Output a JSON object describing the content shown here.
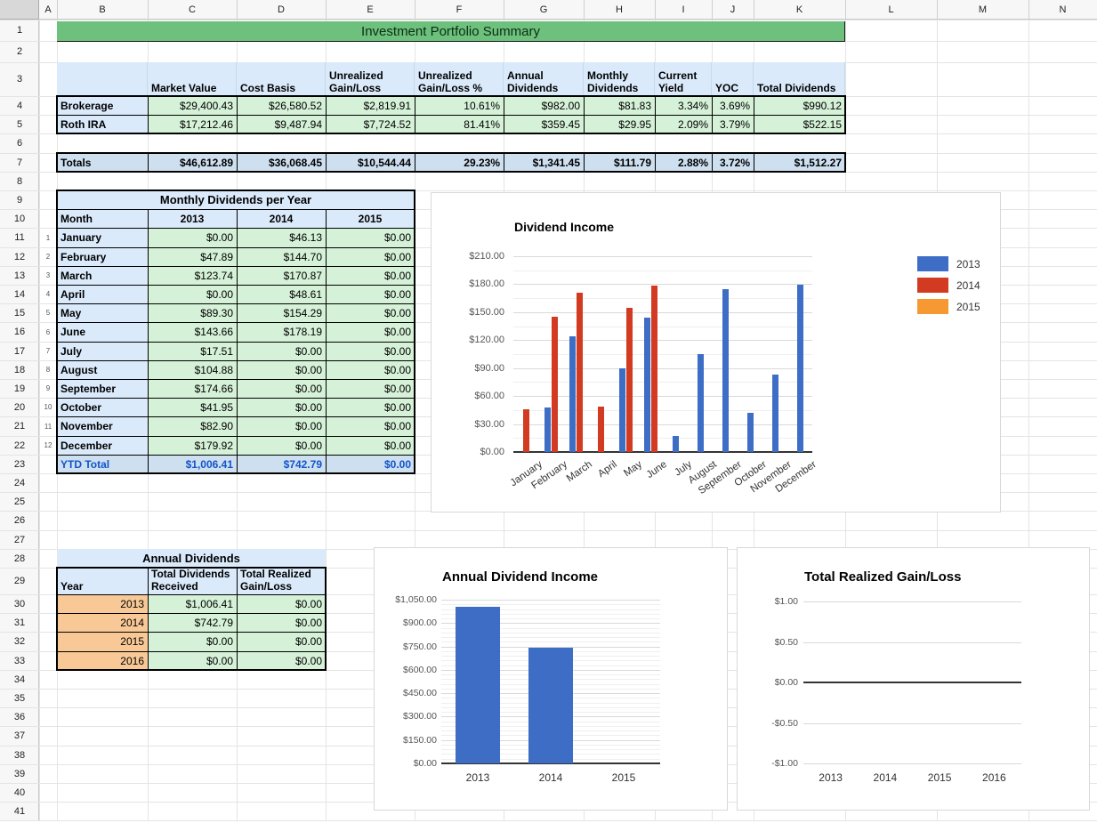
{
  "sheet": {
    "title": "Investment Portfolio Summary",
    "column_letters": [
      "A",
      "B",
      "C",
      "D",
      "E",
      "F",
      "G",
      "H",
      "I",
      "J",
      "K",
      "L",
      "M",
      "N"
    ],
    "row_numbers": [
      1,
      2,
      3,
      4,
      5,
      6,
      7,
      8,
      9,
      10,
      11,
      12,
      13,
      14,
      15,
      16,
      17,
      18,
      19,
      20,
      21,
      22,
      23,
      24,
      25,
      26,
      27,
      28,
      29,
      30,
      31,
      32,
      33,
      34,
      35,
      36,
      37,
      38,
      39,
      40,
      41
    ]
  },
  "summary_table": {
    "headers": [
      "",
      "Market Value",
      "Cost Basis",
      "Unrealized Gain/Loss",
      "Unrealized Gain/Loss %",
      "Annual Dividends",
      "Monthly Dividends",
      "Current Yield",
      "YOC",
      "Total Dividends"
    ],
    "rows": [
      {
        "label": "Brokerage",
        "values": [
          "$29,400.43",
          "$26,580.52",
          "$2,819.91",
          "10.61%",
          "$982.00",
          "$81.83",
          "3.34%",
          "3.69%",
          "$990.12"
        ]
      },
      {
        "label": "Roth IRA",
        "values": [
          "$17,212.46",
          "$9,487.94",
          "$7,724.52",
          "81.41%",
          "$359.45",
          "$29.95",
          "2.09%",
          "3.79%",
          "$522.15"
        ]
      }
    ],
    "totals_label": "Totals",
    "totals_values": [
      "$46,612.89",
      "$36,068.45",
      "$10,544.44",
      "29.23%",
      "$1,341.45",
      "$111.79",
      "2.88%",
      "3.72%",
      "$1,512.27"
    ]
  },
  "monthly_table": {
    "title": "Monthly Dividends per Year",
    "headers": [
      "Month",
      "2013",
      "2014",
      "2015"
    ],
    "rows": [
      {
        "index": "1",
        "month": "January",
        "values": [
          "$0.00",
          "$46.13",
          "$0.00"
        ]
      },
      {
        "index": "2",
        "month": "February",
        "values": [
          "$47.89",
          "$144.70",
          "$0.00"
        ]
      },
      {
        "index": "3",
        "month": "March",
        "values": [
          "$123.74",
          "$170.87",
          "$0.00"
        ]
      },
      {
        "index": "4",
        "month": "April",
        "values": [
          "$0.00",
          "$48.61",
          "$0.00"
        ]
      },
      {
        "index": "5",
        "month": "May",
        "values": [
          "$89.30",
          "$154.29",
          "$0.00"
        ]
      },
      {
        "index": "6",
        "month": "June",
        "values": [
          "$143.66",
          "$178.19",
          "$0.00"
        ]
      },
      {
        "index": "7",
        "month": "July",
        "values": [
          "$17.51",
          "$0.00",
          "$0.00"
        ]
      },
      {
        "index": "8",
        "month": "August",
        "values": [
          "$104.88",
          "$0.00",
          "$0.00"
        ]
      },
      {
        "index": "9",
        "month": "September",
        "values": [
          "$174.66",
          "$0.00",
          "$0.00"
        ]
      },
      {
        "index": "10",
        "month": "October",
        "values": [
          "$41.95",
          "$0.00",
          "$0.00"
        ]
      },
      {
        "index": "11",
        "month": "November",
        "values": [
          "$82.90",
          "$0.00",
          "$0.00"
        ]
      },
      {
        "index": "12",
        "month": "December",
        "values": [
          "$179.92",
          "$0.00",
          "$0.00"
        ]
      }
    ],
    "total_label": "YTD Total",
    "total_values": [
      "$1,006.41",
      "$742.79",
      "$0.00"
    ]
  },
  "annual_table": {
    "title": "Annual Dividends",
    "headers": [
      "Year",
      "Total Dividends Received",
      "Total Realized Gain/Loss"
    ],
    "rows": [
      [
        "2013",
        "$1,006.41",
        "$0.00"
      ],
      [
        "2014",
        "$742.79",
        "$0.00"
      ],
      [
        "2015",
        "$0.00",
        "$0.00"
      ],
      [
        "2016",
        "$0.00",
        "$0.00"
      ]
    ]
  },
  "chart_data": [
    {
      "type": "bar",
      "title": "Dividend Income",
      "categories": [
        "January",
        "February",
        "March",
        "April",
        "May",
        "June",
        "July",
        "August",
        "September",
        "October",
        "November",
        "December"
      ],
      "series": [
        {
          "name": "2013",
          "color": "#3d6dc5",
          "values": [
            0,
            47.89,
            123.74,
            0,
            89.3,
            143.66,
            17.51,
            104.88,
            174.66,
            41.95,
            82.9,
            179.92
          ]
        },
        {
          "name": "2014",
          "color": "#d23b22",
          "values": [
            46.13,
            144.7,
            170.87,
            48.61,
            154.29,
            178.19,
            0,
            0,
            0,
            0,
            0,
            0
          ]
        },
        {
          "name": "2015",
          "color": "#f69932",
          "values": [
            0,
            0,
            0,
            0,
            0,
            0,
            0,
            0,
            0,
            0,
            0,
            0
          ]
        }
      ],
      "ylim": [
        0,
        210
      ],
      "ytick_labels": [
        "$0.00",
        "$30.00",
        "$60.00",
        "$90.00",
        "$120.00",
        "$150.00",
        "$180.00",
        "$210.00"
      ],
      "legend_position": "right",
      "grid": true
    },
    {
      "type": "bar",
      "title": "Annual Dividend Income",
      "categories": [
        "2013",
        "2014",
        "2015"
      ],
      "series": [
        {
          "name": "Total Dividends Received",
          "color": "#3d6dc5",
          "values": [
            1006.41,
            742.79,
            0
          ]
        }
      ],
      "ylim": [
        0,
        1050
      ],
      "ytick_labels": [
        "$0.00",
        "$150.00",
        "$300.00",
        "$450.00",
        "$600.00",
        "$750.00",
        "$900.00",
        "$1,050.00"
      ],
      "grid": true
    },
    {
      "type": "bar",
      "title": "Total Realized Gain/Loss",
      "categories": [
        "2013",
        "2014",
        "2015",
        "2016"
      ],
      "series": [
        {
          "name": "Total Realized Gain/Loss",
          "color": "#3d6dc5",
          "values": [
            0,
            0,
            0,
            0
          ]
        }
      ],
      "ylim": [
        -1,
        1
      ],
      "ytick_labels": [
        "-$1.00",
        "-$0.50",
        "$0.00",
        "$0.50",
        "$1.00"
      ],
      "grid": true
    }
  ],
  "colors": {
    "title_bar": "#6ec07d",
    "header_blue": "#daeafb",
    "cell_green": "#d5f1d7",
    "totals_blue": "#cedfef",
    "year_orange": "#f8c996",
    "ytd_text": "#1155cc",
    "series_2013": "#3d6dc5",
    "series_2014": "#d23b22",
    "series_2015": "#f69932"
  }
}
